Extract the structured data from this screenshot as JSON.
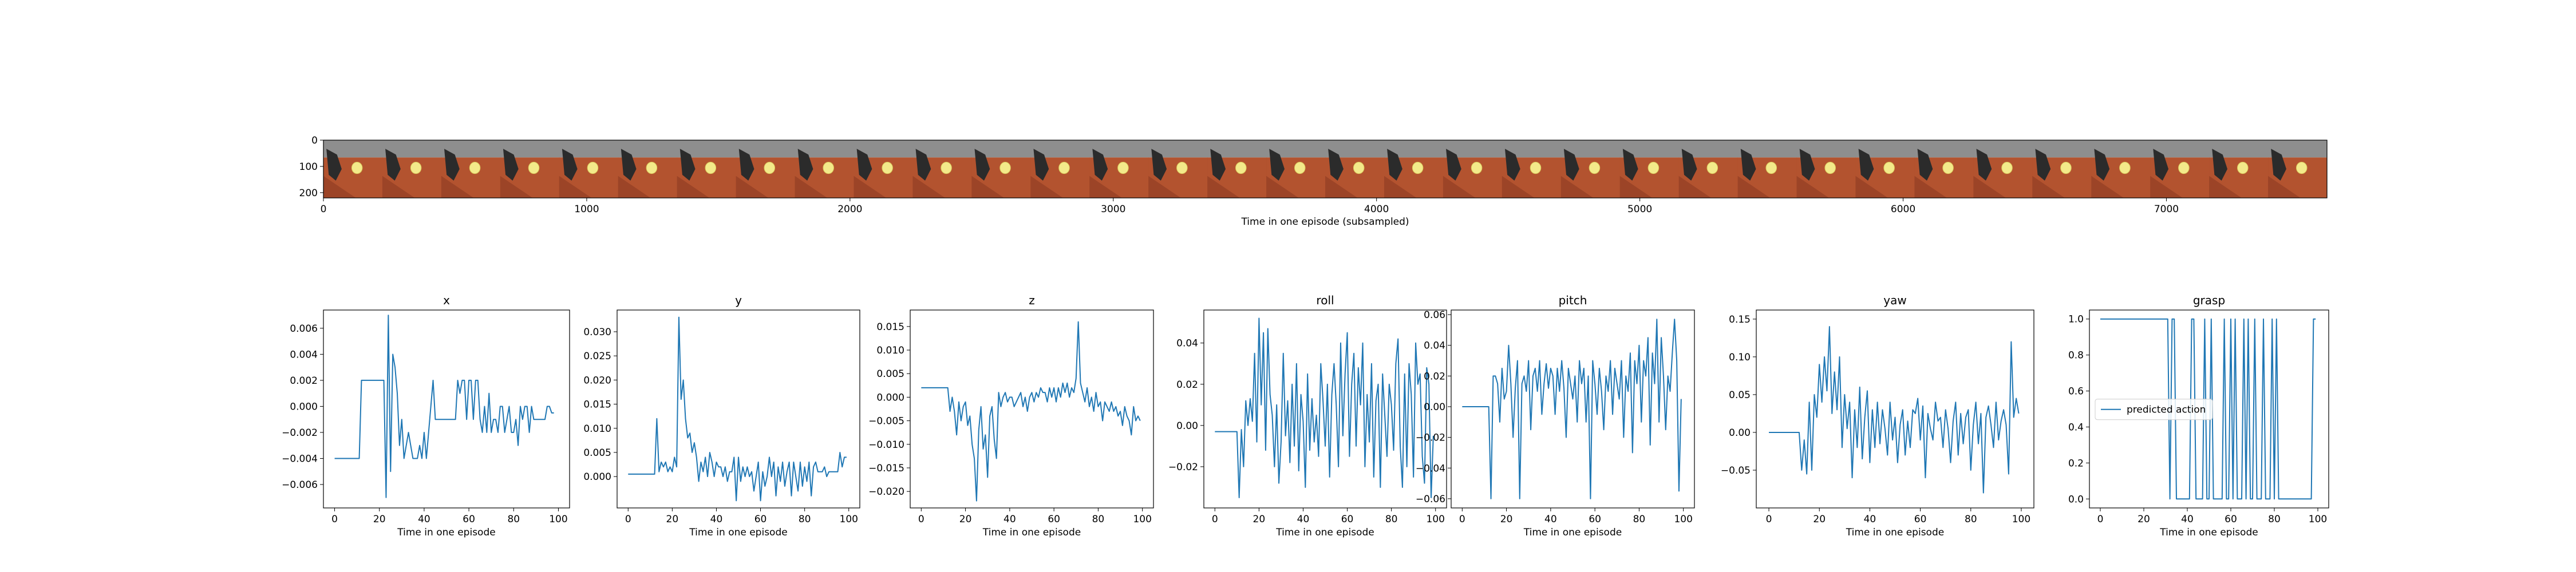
{
  "filmstrip": {
    "xlabel": "Time in one episode (subsampled)",
    "x_ticks": [
      "0",
      "1000",
      "2000",
      "3000",
      "4000",
      "5000",
      "6000",
      "7000"
    ],
    "y_ticks": [
      "0",
      "100",
      "200"
    ],
    "x_range": [
      0,
      7610
    ],
    "y_range": [
      0,
      220
    ],
    "frame_count": 34
  },
  "chart_data": [
    {
      "type": "line",
      "title": "x",
      "xlabel": "Time in one episode",
      "ylabel": "",
      "xlim": [
        -5,
        105
      ],
      "ylim": [
        -0.0078,
        0.0074
      ],
      "x_ticks": [
        0,
        20,
        40,
        60,
        80,
        100
      ],
      "y_ticks": [
        -0.006,
        -0.004,
        -0.002,
        0.0,
        0.002,
        0.004,
        0.006
      ],
      "color": "#1f77b4",
      "series": [
        {
          "values": [
            -0.004,
            -0.004,
            -0.004,
            -0.004,
            -0.004,
            -0.004,
            -0.004,
            -0.004,
            -0.004,
            -0.004,
            -0.004,
            -0.004,
            0.002,
            0.002,
            0.002,
            0.002,
            0.002,
            0.002,
            0.002,
            0.002,
            0.002,
            0.002,
            0.002,
            -0.007,
            0.007,
            -0.005,
            0.004,
            0.003,
            0.001,
            -0.003,
            -0.001,
            -0.004,
            -0.003,
            -0.002,
            -0.003,
            -0.004,
            -0.004,
            -0.004,
            -0.003,
            -0.004,
            -0.002,
            -0.004,
            -0.002,
            0.0,
            0.002,
            -0.001,
            -0.001,
            -0.001,
            -0.001,
            -0.001,
            -0.001,
            -0.001,
            -0.001,
            -0.001,
            -0.001,
            0.002,
            0.001,
            0.002,
            0.002,
            -0.001,
            0.002,
            0.002,
            -0.001,
            0.002,
            0.002,
            -0.001,
            -0.002,
            0.0,
            -0.002,
            0.001,
            -0.002,
            -0.001,
            -0.001,
            -0.002,
            0.0,
            0.0,
            -0.002,
            -0.001,
            0.0,
            -0.002,
            -0.002,
            -0.001,
            -0.003,
            0.0,
            -0.001,
            0.0,
            0.0,
            -0.002,
            0.0,
            -0.001,
            -0.001,
            -0.001,
            -0.001,
            -0.001,
            -0.001,
            0.0,
            0.0,
            -0.0005,
            -0.0005
          ]
        }
      ]
    },
    {
      "type": "line",
      "title": "y",
      "xlabel": "Time in one episode",
      "ylabel": "",
      "xlim": [
        -5,
        105
      ],
      "ylim": [
        -0.0065,
        0.0345
      ],
      "x_ticks": [
        0,
        20,
        40,
        60,
        80,
        100
      ],
      "y_ticks": [
        0.0,
        0.005,
        0.01,
        0.015,
        0.02,
        0.025,
        0.03
      ],
      "color": "#1f77b4",
      "series": [
        {
          "values": [
            0.0005,
            0.0005,
            0.0005,
            0.0005,
            0.0005,
            0.0005,
            0.0005,
            0.0005,
            0.0005,
            0.0005,
            0.0005,
            0.0005,
            0.0005,
            0.012,
            0.001,
            0.003,
            0.002,
            0.003,
            0.001,
            0.002,
            0.001,
            0.004,
            0.002,
            0.033,
            0.016,
            0.02,
            0.012,
            0.008,
            0.009,
            0.005,
            0.007,
            0.004,
            -0.001,
            0.003,
            0.001,
            0.004,
            0.0,
            0.005,
            0.003,
            0.0,
            0.003,
            0.002,
            0.002,
            0.0,
            0.002,
            -0.001,
            0.001,
            0.001,
            0.004,
            -0.005,
            0.004,
            -0.001,
            0.002,
            0.0,
            0.002,
            0.0,
            0.001,
            -0.003,
            0.0,
            0.003,
            -0.005,
            0.001,
            -0.002,
            0.0,
            0.004,
            0.0,
            0.003,
            -0.004,
            0.002,
            -0.001,
            0.003,
            -0.002,
            0.001,
            0.003,
            -0.004,
            0.003,
            0.0,
            -0.003,
            0.003,
            -0.002,
            0.002,
            -0.001,
            0.003,
            -0.004,
            0.002,
            0.003,
            0.001,
            0.001,
            0.001,
            0.002,
            0.0,
            0.001,
            0.001,
            0.001,
            0.001,
            0.001,
            0.005,
            0.002,
            0.004,
            0.004
          ]
        }
      ]
    },
    {
      "type": "line",
      "title": "z",
      "xlabel": "Time in one episode",
      "ylabel": "",
      "xlim": [
        -5,
        105
      ],
      "ylim": [
        -0.0235,
        0.0185
      ],
      "x_ticks": [
        0,
        20,
        40,
        60,
        80,
        100
      ],
      "y_ticks": [
        -0.02,
        -0.015,
        -0.01,
        -0.005,
        0.0,
        0.005,
        0.01,
        0.015
      ],
      "color": "#1f77b4",
      "series": [
        {
          "values": [
            0.002,
            0.002,
            0.002,
            0.002,
            0.002,
            0.002,
            0.002,
            0.002,
            0.002,
            0.002,
            0.002,
            0.002,
            0.002,
            -0.003,
            0.0,
            -0.003,
            -0.008,
            -0.001,
            -0.005,
            -0.002,
            -0.001,
            -0.006,
            -0.004,
            -0.01,
            -0.013,
            -0.022,
            -0.007,
            -0.002,
            -0.011,
            -0.008,
            -0.017,
            -0.004,
            -0.002,
            -0.009,
            -0.013,
            0.001,
            -0.002,
            0.0,
            0.001,
            -0.001,
            0.0,
            0.0,
            -0.002,
            -0.001,
            0.0,
            0.001,
            -0.002,
            0.0,
            -0.003,
            0.0,
            0.001,
            -0.001,
            0.001,
            0.0,
            0.002,
            0.001,
            0.001,
            -0.001,
            0.002,
            0.0,
            0.002,
            -0.001,
            0.002,
            0.0,
            0.003,
            0.001,
            0.003,
            0.0,
            0.002,
            0.001,
            0.004,
            0.016,
            0.003,
            0.001,
            -0.001,
            0.002,
            -0.002,
            0.0,
            -0.003,
            0.001,
            -0.002,
            -0.001,
            -0.005,
            -0.001,
            -0.002,
            -0.003,
            -0.001,
            -0.003,
            -0.002,
            -0.004,
            -0.003,
            -0.006,
            -0.002,
            -0.004,
            -0.005,
            -0.008,
            -0.002,
            -0.005,
            -0.004,
            -0.005
          ]
        }
      ]
    },
    {
      "type": "line",
      "title": "roll",
      "xlabel": "Time in one episode",
      "ylabel": "",
      "xlim": [
        -5,
        105
      ],
      "ylim": [
        -0.04,
        0.056
      ],
      "x_ticks": [
        0,
        20,
        40,
        60,
        80,
        100
      ],
      "y_ticks": [
        -0.02,
        0.0,
        0.02,
        0.04
      ],
      "color": "#1f77b4",
      "series": [
        {
          "values": [
            -0.003,
            -0.003,
            -0.003,
            -0.003,
            -0.003,
            -0.003,
            -0.003,
            -0.003,
            -0.003,
            -0.003,
            -0.003,
            -0.035,
            -0.002,
            -0.02,
            0.012,
            0.0,
            0.013,
            0.002,
            0.035,
            -0.008,
            0.052,
            0.01,
            0.045,
            -0.012,
            0.047,
            0.015,
            0.005,
            -0.02,
            0.01,
            -0.028,
            -0.008,
            0.035,
            -0.005,
            0.012,
            -0.018,
            0.02,
            -0.01,
            0.03,
            -0.022,
            0.015,
            0.002,
            -0.03,
            0.025,
            -0.012,
            0.013,
            -0.008,
            0.005,
            -0.015,
            0.03,
            0.012,
            -0.01,
            0.02,
            -0.025,
            0.015,
            0.03,
            0.01,
            -0.02,
            0.04,
            -0.005,
            0.025,
            0.045,
            -0.015,
            0.02,
            0.035,
            -0.01,
            0.028,
            0.01,
            0.04,
            -0.02,
            0.015,
            -0.008,
            0.03,
            -0.025,
            0.012,
            0.02,
            -0.03,
            0.025,
            0.005,
            -0.015,
            0.02,
            0.01,
            -0.012,
            0.03,
            0.042,
            -0.01,
            -0.03,
            0.025,
            -0.02,
            0.03,
            0.015,
            -0.025,
            0.04,
            0.02,
            0.025,
            -0.015,
            -0.028,
            0.028,
            0.02,
            -0.035,
            -0.005
          ]
        }
      ]
    },
    {
      "type": "line",
      "title": "pitch",
      "xlabel": "Time in one episode",
      "ylabel": "",
      "xlim": [
        -5,
        105
      ],
      "ylim": [
        -0.066,
        0.063
      ],
      "x_ticks": [
        0,
        20,
        40,
        60,
        80,
        100
      ],
      "y_ticks": [
        -0.06,
        -0.04,
        -0.02,
        0.0,
        0.02,
        0.04,
        0.06
      ],
      "color": "#1f77b4",
      "series": [
        {
          "values": [
            0.0,
            0.0,
            0.0,
            0.0,
            0.0,
            0.0,
            0.0,
            0.0,
            0.0,
            0.0,
            0.0,
            0.0,
            0.0,
            -0.06,
            0.02,
            0.02,
            0.015,
            -0.01,
            0.025,
            0.005,
            0.01,
            0.04,
            0.015,
            -0.02,
            0.012,
            0.03,
            -0.06,
            0.015,
            0.02,
            0.01,
            0.03,
            -0.015,
            0.02,
            0.025,
            0.01,
            0.03,
            -0.005,
            0.015,
            0.028,
            0.012,
            0.025,
            0.02,
            -0.005,
            0.025,
            0.01,
            0.03,
            0.012,
            -0.02,
            0.025,
            0.015,
            0.005,
            0.02,
            -0.01,
            0.03,
            0.015,
            0.025,
            -0.01,
            0.02,
            -0.06,
            0.03,
            0.015,
            -0.005,
            0.025,
            0.01,
            -0.015,
            0.02,
            0.01,
            0.03,
            -0.005,
            0.025,
            0.015,
            0.005,
            0.03,
            -0.02,
            0.02,
            0.01,
            0.035,
            -0.03,
            0.03,
            0.015,
            0.04,
            -0.01,
            0.03,
            0.02,
            0.045,
            -0.025,
            0.035,
            0.015,
            0.057,
            -0.01,
            0.045,
            0.02,
            -0.015,
            0.02,
            0.01,
            0.035,
            0.057,
            0.03,
            -0.055,
            0.005
          ]
        }
      ]
    },
    {
      "type": "line",
      "title": "yaw",
      "xlabel": "Time in one episode",
      "ylabel": "",
      "xlim": [
        -5,
        105
      ],
      "ylim": [
        -0.1,
        0.162
      ],
      "x_ticks": [
        0,
        20,
        40,
        60,
        80,
        100
      ],
      "y_ticks": [
        -0.05,
        0.0,
        0.05,
        0.1,
        0.15
      ],
      "color": "#1f77b4",
      "series": [
        {
          "values": [
            0.0,
            0.0,
            0.0,
            0.0,
            0.0,
            0.0,
            0.0,
            0.0,
            0.0,
            0.0,
            0.0,
            0.0,
            0.0,
            -0.05,
            -0.01,
            -0.055,
            0.04,
            -0.05,
            0.05,
            0.02,
            0.09,
            0.04,
            0.1,
            0.055,
            0.14,
            0.025,
            0.08,
            0.03,
            0.1,
            -0.02,
            0.05,
            0.005,
            0.04,
            -0.06,
            0.03,
            -0.02,
            0.06,
            -0.035,
            0.02,
            0.055,
            -0.04,
            0.03,
            -0.02,
            0.04,
            -0.015,
            0.03,
            0.005,
            -0.03,
            0.04,
            -0.01,
            0.02,
            -0.04,
            0.01,
            0.03,
            -0.03,
            0.015,
            -0.02,
            0.03,
            0.025,
            0.045,
            -0.01,
            0.035,
            -0.06,
            0.025,
            0.005,
            -0.01,
            0.04,
            0.015,
            0.02,
            -0.02,
            0.03,
            0.005,
            -0.04,
            0.015,
            0.04,
            -0.03,
            0.025,
            -0.015,
            0.02,
            0.03,
            -0.05,
            0.01,
            0.04,
            -0.015,
            0.025,
            -0.08,
            0.02,
            0.035,
            0.01,
            -0.02,
            0.04,
            -0.01,
            0.015,
            0.03,
            0.01,
            -0.055,
            0.12,
            0.02,
            0.045,
            0.025
          ]
        }
      ]
    },
    {
      "type": "line",
      "title": "grasp",
      "xlabel": "Time in one episode",
      "ylabel": "",
      "xlim": [
        -5,
        105
      ],
      "ylim": [
        -0.05,
        1.05
      ],
      "x_ticks": [
        0,
        20,
        40,
        60,
        80,
        100
      ],
      "y_ticks": [
        0.0,
        0.2,
        0.4,
        0.6,
        0.8,
        1.0
      ],
      "color": "#1f77b4",
      "legend": {
        "entries": [
          "predicted action"
        ],
        "placement": "center-left"
      },
      "series": [
        {
          "name": "predicted action",
          "values": [
            1,
            1,
            1,
            1,
            1,
            1,
            1,
            1,
            1,
            1,
            1,
            1,
            1,
            1,
            1,
            1,
            1,
            1,
            1,
            1,
            1,
            1,
            1,
            1,
            1,
            1,
            1,
            1,
            1,
            1,
            1,
            1,
            0,
            1,
            1,
            0,
            0,
            0,
            0,
            0,
            0,
            0,
            1,
            1,
            0,
            0,
            0,
            0,
            1,
            0,
            0,
            1,
            0,
            0,
            0,
            0,
            0,
            1,
            0,
            0,
            1,
            0,
            1,
            0,
            0,
            0,
            1,
            0,
            1,
            0,
            0,
            1,
            0,
            0,
            0,
            1,
            0,
            0,
            0,
            1,
            0,
            1,
            0,
            0,
            0,
            0,
            0,
            0,
            0,
            0,
            0,
            0,
            0,
            0,
            0,
            0,
            0,
            0,
            1,
            1
          ]
        }
      ]
    }
  ]
}
